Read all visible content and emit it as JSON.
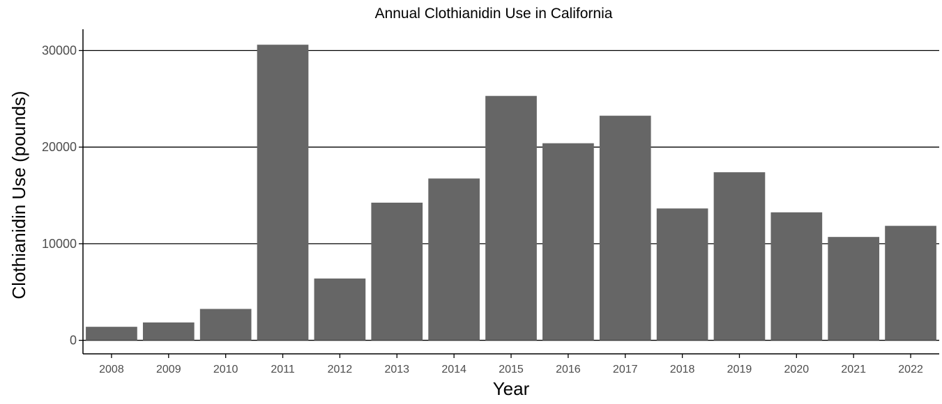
{
  "chart_data": {
    "type": "bar",
    "title": "Annual Clothianidin Use in California",
    "xlabel": "Year",
    "ylabel": "Clothianidin Use (pounds)",
    "categories": [
      "2008",
      "2009",
      "2010",
      "2011",
      "2012",
      "2013",
      "2014",
      "2015",
      "2016",
      "2017",
      "2018",
      "2019",
      "2020",
      "2021",
      "2022"
    ],
    "values": [
      1400,
      1850,
      3250,
      30600,
      6400,
      14250,
      16750,
      25300,
      20400,
      23250,
      13650,
      17400,
      13250,
      10700,
      11850
    ],
    "ylim": [
      -1400,
      32200
    ],
    "yticks": [
      0,
      10000,
      20000,
      30000
    ],
    "ytick_labels": [
      "0",
      "10000",
      "20000",
      "30000"
    ],
    "grid": "horizontal major",
    "legend": "none",
    "bar_color": "#666666"
  }
}
